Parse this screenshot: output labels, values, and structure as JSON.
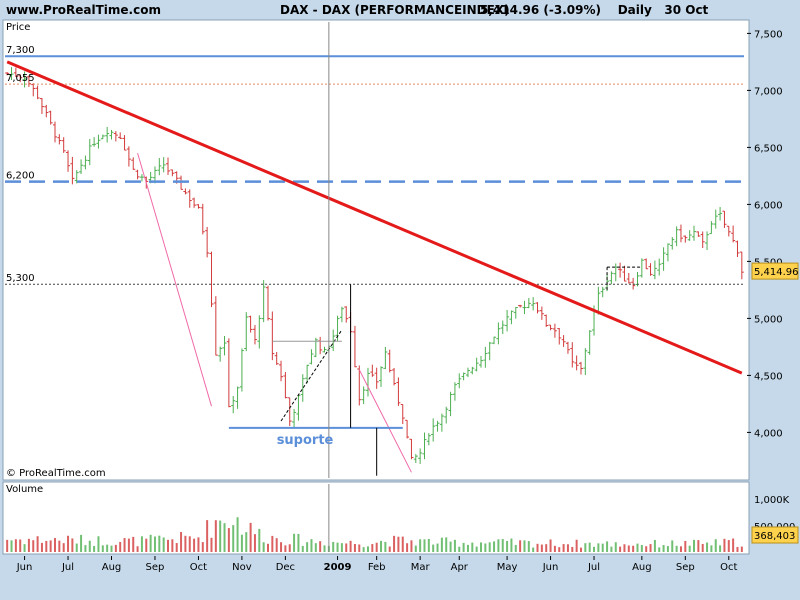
{
  "header": {
    "site": "www.ProRealTime.com",
    "symbol": "DAX - DAX (PERFORMANCEINDEX)",
    "quote": "5,414.96 (-3.09%)",
    "period": "Daily",
    "date": "30 Oct"
  },
  "panels": {
    "price_label": "Price",
    "volume_label": "Volume",
    "copyright": "© ProRealTime.com"
  },
  "colors": {
    "panel_bg": "#ffffff",
    "chrome_bg": "#c5d9ea",
    "up": "#4caf50",
    "down": "#d23a3a",
    "trendline": "#e41a1a",
    "level_line": "#5b8fd9"
  },
  "chart_data": {
    "type": "candlestick",
    "title": "DAX - DAX (PERFORMANCEINDEX)",
    "period": "Daily",
    "last_close": 5414.96,
    "last_change_pct": -3.09,
    "last_volume": "368,403",
    "y_ticks": [
      "4,000",
      "4,500",
      "5,000",
      "5,500",
      "6,000",
      "6,500",
      "7,000",
      "7,500"
    ],
    "ylim": [
      3600,
      7600
    ],
    "x_ticks": [
      "Jun",
      "Jul",
      "Aug",
      "Sep",
      "Oct",
      "Nov",
      "Dec",
      "2009",
      "Feb",
      "Mar",
      "Apr",
      "May",
      "Jun",
      "Jul",
      "Aug",
      "Sep",
      "Oct"
    ],
    "volume_ticks": [
      "1,000K",
      "500,000"
    ],
    "levels": [
      {
        "label": "7,300",
        "value": 7300,
        "style": "solid"
      },
      {
        "label": "7,055",
        "value": 7055,
        "style": "dotted"
      },
      {
        "label": "6,200",
        "value": 6200,
        "style": "dashed"
      },
      {
        "label": "5,300",
        "value": 5300,
        "style": "dotted"
      }
    ],
    "annotations": [
      {
        "text": "suporte",
        "value": 4040
      }
    ],
    "series": [
      {
        "anchors": [
          [
            0,
            7150
          ],
          [
            4,
            7120
          ],
          [
            7,
            6950
          ],
          [
            10,
            6700
          ],
          [
            13,
            6450
          ],
          [
            15,
            6200
          ],
          [
            17,
            6350
          ],
          [
            20,
            6550
          ],
          [
            23,
            6650
          ],
          [
            26,
            6600
          ],
          [
            29,
            6300
          ],
          [
            32,
            6200
          ],
          [
            36,
            6350
          ],
          [
            40,
            6150
          ],
          [
            44,
            5950
          ],
          [
            46,
            5600
          ],
          [
            48,
            4700
          ],
          [
            50,
            4800
          ],
          [
            51,
            4200
          ],
          [
            53,
            4400
          ],
          [
            55,
            5000
          ],
          [
            57,
            4800
          ],
          [
            59,
            5250
          ],
          [
            61,
            4700
          ],
          [
            63,
            4500
          ],
          [
            65,
            4100
          ],
          [
            67,
            4300
          ],
          [
            69,
            4600
          ],
          [
            71,
            4800
          ],
          [
            73,
            4700
          ],
          [
            75,
            4850
          ],
          [
            77,
            5100
          ],
          [
            79,
            4900
          ],
          [
            81,
            4300
          ],
          [
            83,
            4500
          ],
          [
            85,
            4450
          ],
          [
            87,
            4700
          ],
          [
            89,
            4400
          ],
          [
            91,
            4150
          ],
          [
            92,
            3950
          ],
          [
            93,
            3750
          ],
          [
            95,
            3820
          ],
          [
            97,
            4000
          ],
          [
            100,
            4150
          ],
          [
            103,
            4400
          ],
          [
            106,
            4550
          ],
          [
            109,
            4650
          ],
          [
            112,
            4850
          ],
          [
            115,
            5000
          ],
          [
            118,
            5100
          ],
          [
            121,
            5150
          ],
          [
            124,
            4950
          ],
          [
            126,
            4900
          ],
          [
            128,
            4800
          ],
          [
            130,
            4600
          ],
          [
            132,
            4550
          ],
          [
            134,
            4900
          ],
          [
            136,
            5200
          ],
          [
            138,
            5350
          ],
          [
            140,
            5450
          ],
          [
            142,
            5350
          ],
          [
            144,
            5300
          ],
          [
            146,
            5500
          ],
          [
            148,
            5400
          ],
          [
            150,
            5450
          ],
          [
            152,
            5650
          ],
          [
            154,
            5750
          ],
          [
            156,
            5700
          ],
          [
            158,
            5750
          ],
          [
            160,
            5650
          ],
          [
            162,
            5850
          ],
          [
            164,
            5900
          ],
          [
            166,
            5750
          ],
          [
            168,
            5600
          ],
          [
            169,
            5415
          ]
        ],
        "volume_profile": [
          [
            0,
            260
          ],
          [
            30,
            220
          ],
          [
            44,
            300
          ],
          [
            48,
            620
          ],
          [
            52,
            700
          ],
          [
            55,
            480
          ],
          [
            60,
            300
          ],
          [
            70,
            220
          ],
          [
            80,
            180
          ],
          [
            90,
            230
          ],
          [
            100,
            200
          ],
          [
            120,
            180
          ],
          [
            140,
            160
          ],
          [
            160,
            170
          ],
          [
            169,
            200
          ]
        ]
      }
    ]
  }
}
